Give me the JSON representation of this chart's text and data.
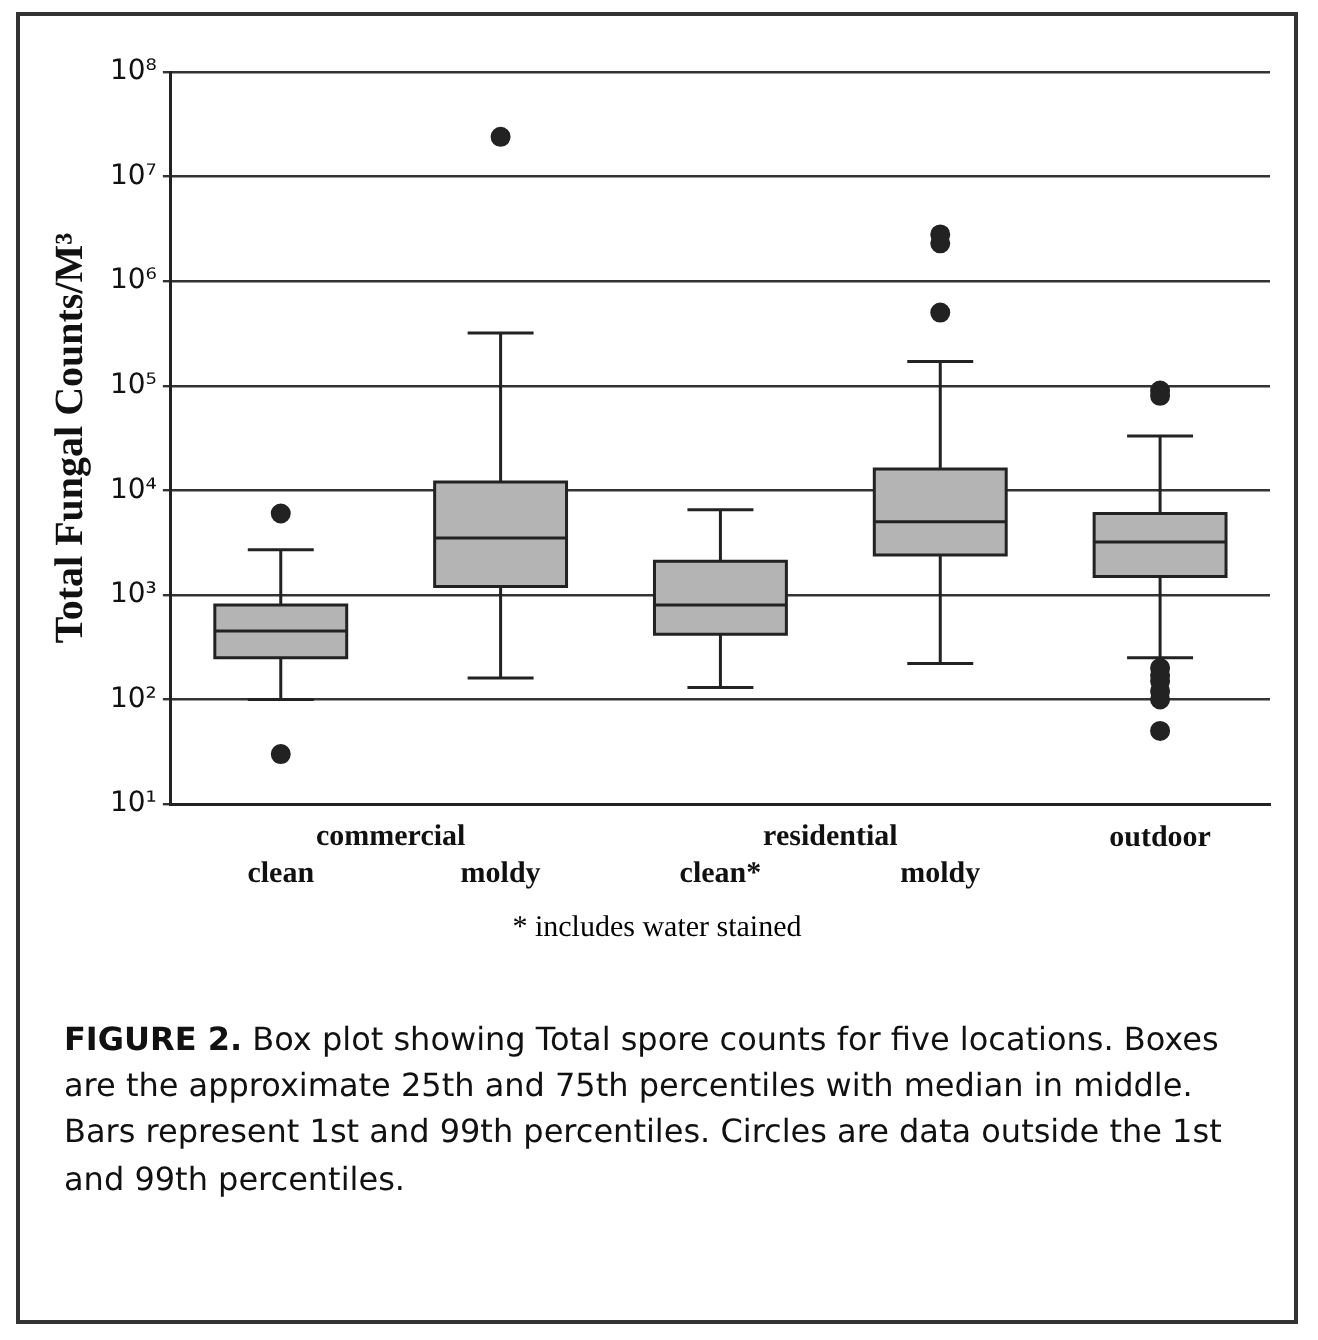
{
  "chart_data": {
    "type": "box",
    "ylabel": "Total Fungal Counts/M³",
    "categories": [
      "clean",
      "moldy",
      "clean*",
      "moldy",
      "outdoor"
    ],
    "color": "#b4b4b4",
    "log": "y",
    "grid": "y",
    "ylim": [
      10,
      100000000
    ],
    "yticks": [
      {
        "value": 10,
        "label": "10¹"
      },
      {
        "value": 100,
        "label": "10²"
      },
      {
        "value": 1000,
        "label": "10³"
      },
      {
        "value": 10000,
        "label": "10⁴"
      },
      {
        "value": 100000,
        "label": "10⁵"
      },
      {
        "value": 1000000,
        "label": "10⁶"
      },
      {
        "value": 10000000,
        "label": "10⁷"
      },
      {
        "value": 100000000,
        "label": "10⁸"
      }
    ],
    "boxes": [
      {
        "low": 100,
        "q1": 250,
        "median": 450,
        "q3": 800,
        "high": 2700,
        "outliers": [
          6000,
          30
        ]
      },
      {
        "low": 160,
        "q1": 1200,
        "median": 3500,
        "q3": 12000,
        "high": 320000,
        "outliers": [
          24000000
        ]
      },
      {
        "low": 130,
        "q1": 420,
        "median": 800,
        "q3": 2100,
        "high": 6500
      },
      {
        "low": 220,
        "q1": 2400,
        "median": 5000,
        "q3": 16000,
        "high": 170000,
        "outliers": [
          500000,
          2300000,
          2800000
        ]
      },
      {
        "low": 250,
        "q1": 1500,
        "median": 3200,
        "q3": 6000,
        "high": 33000,
        "outliers": [
          90000,
          80000,
          200,
          170,
          150,
          120,
          100,
          50
        ]
      }
    ],
    "annotations": [
      "commercial",
      "residential",
      "* includes water stained",
      "FIGURE 2.    Box plot showing Total spore counts for five locations. Boxes are the approximate 25th and 75th percentiles with median in middle. Bars represent 1st and 99th percentiles. Circles are data outside the 1st and 99th percentiles."
    ]
  }
}
